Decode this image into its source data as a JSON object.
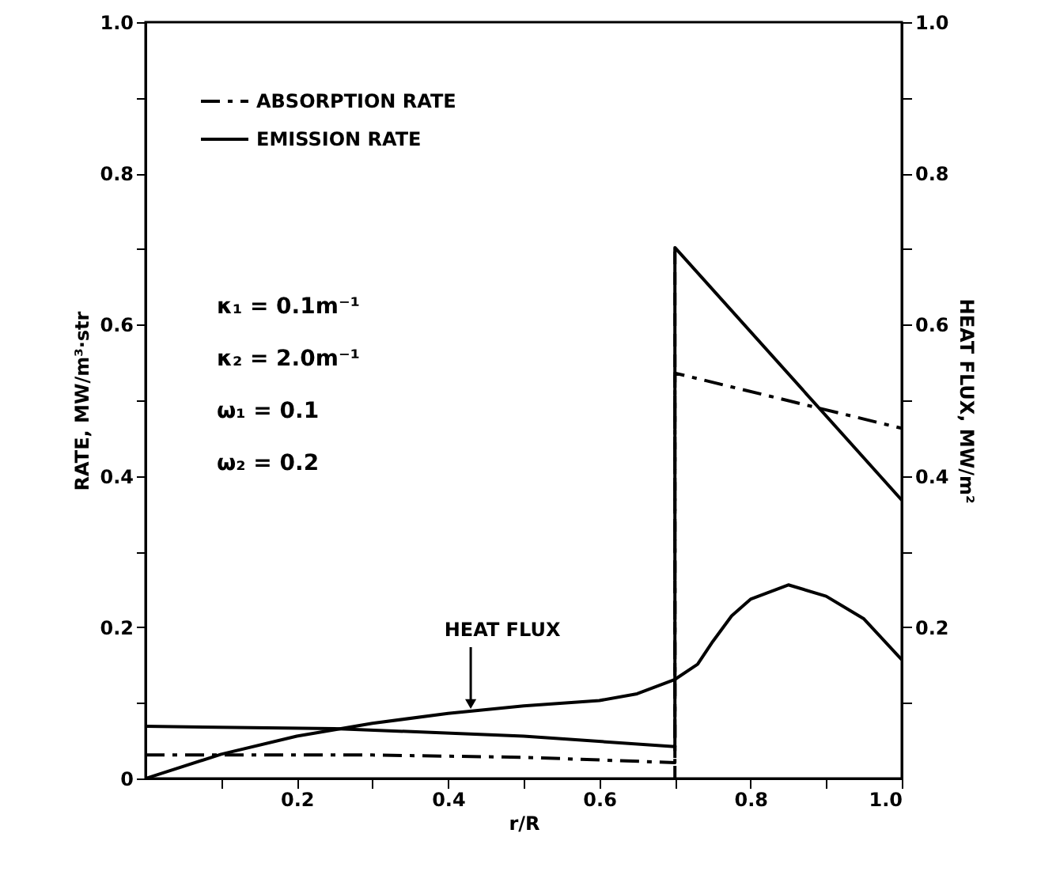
{
  "chart_data": {
    "type": "line",
    "xlabel": "r/R",
    "ylabel": "RATE, MW/m³·str",
    "y2label": "HEAT FLUX, MW/m²",
    "xlim": [
      0,
      1.0
    ],
    "ylim": [
      0,
      1.0
    ],
    "y2lim": [
      0,
      1.0
    ],
    "xticks": [
      {
        "value": 0.1,
        "label": null
      },
      0.2,
      {
        "value": 0.3,
        "label": null
      },
      0.4,
      {
        "value": 0.5,
        "label": null
      },
      0.6,
      {
        "value": 0.7,
        "label": null
      },
      0.8,
      {
        "value": 0.9,
        "label": null
      },
      {
        "value": 1.0,
        "label": "1.0"
      }
    ],
    "yticks": [
      0,
      {
        "value": 0.1,
        "label": null
      },
      0.2,
      {
        "value": 0.3,
        "label": null
      },
      0.4,
      {
        "value": 0.5,
        "label": null
      },
      0.6,
      {
        "value": 0.7,
        "label": null
      },
      0.8,
      {
        "value": 0.9,
        "label": null
      },
      {
        "value": 1.0,
        "label": "1.0"
      }
    ],
    "y2ticks": [
      {
        "value": 0.1,
        "label": null
      },
      0.2,
      {
        "value": 0.3,
        "label": null
      },
      0.4,
      {
        "value": 0.5,
        "label": null
      },
      0.6,
      {
        "value": 0.7,
        "label": null
      },
      0.8,
      {
        "value": 0.9,
        "label": null
      },
      {
        "value": 1.0,
        "label": "1.0"
      }
    ],
    "series": [
      {
        "name": "ABSORPTION RATE",
        "color": "#000000",
        "line_style": "dashed",
        "x": [
          0,
          0.3,
          0.5,
          0.7,
          null,
          0.7,
          1.0
        ],
        "values": [
          0.031,
          0.031,
          0.028,
          0.021,
          null,
          0.536,
          0.463
        ]
      },
      {
        "name": "EMISSION RATE",
        "color": "#000000",
        "line_style": "solid",
        "x": [
          0,
          0.25,
          0.5,
          0.7,
          null,
          0.7,
          1.0
        ],
        "values": [
          0.069,
          0.066,
          0.056,
          0.042,
          null,
          0.702,
          0.368
        ]
      },
      {
        "color": "#000000",
        "line_style": "solid",
        "axis": "y2",
        "x": [
          0,
          0.1,
          0.2,
          0.3,
          0.4,
          0.5,
          0.6,
          0.65,
          0.7,
          0.73,
          0.75,
          0.775,
          0.8,
          0.85,
          0.9,
          0.95,
          1.0
        ],
        "values": [
          0.0,
          0.032,
          0.056,
          0.073,
          0.086,
          0.096,
          0.103,
          0.112,
          0.131,
          0.151,
          0.181,
          0.215,
          0.237,
          0.256,
          0.241,
          0.211,
          0.157
        ]
      }
    ],
    "ref_lines": [
      {
        "axis": "x",
        "value": 0.7,
        "color": "#000000",
        "line_style": "dashed"
      }
    ],
    "annotations": [
      {
        "text": "HEAT FLUX",
        "x": 0.43,
        "y": 0.09
      },
      "κ₁ = 0.1m⁻¹",
      "κ₂ = 2.0m⁻¹",
      "ω₁ = 0.1",
      "ω₂ = 0.2"
    ],
    "legend": "top left",
    "marker": "none"
  }
}
